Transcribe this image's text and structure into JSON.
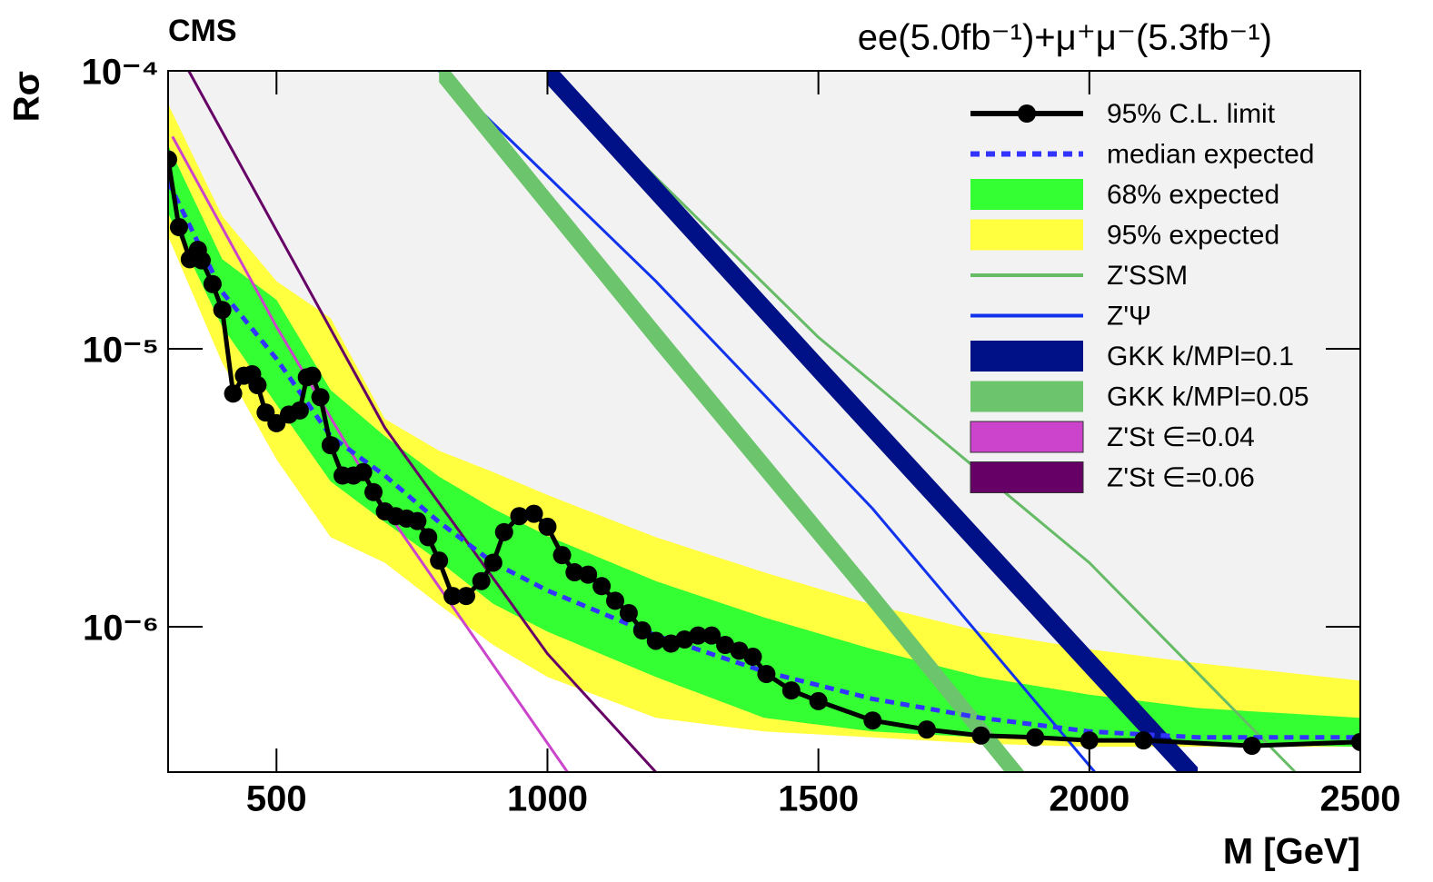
{
  "chart_data": {
    "type": "line",
    "title": "CMS",
    "subtitle": "ee(5.0fb⁻¹)+μ⁺μ⁻(5.3fb⁻¹)",
    "xlabel": "M [GeV]",
    "ylabel": "Rσ",
    "xlim": [
      300,
      2500
    ],
    "xticks": [
      500,
      1000,
      1500,
      2000,
      2500
    ],
    "ylim": [
      3e-07,
      0.0001
    ],
    "ylog": true,
    "yticks": [
      {
        "value": 1e-06,
        "label": "10⁻⁶"
      },
      {
        "value": 1e-05,
        "label": "10⁻⁵"
      },
      {
        "value": 0.0001,
        "label": "10⁻⁴"
      }
    ],
    "legend": "upper right",
    "series": [
      {
        "name": "95% C.L. limit",
        "color": "#000000",
        "style": "points",
        "x": [
          300,
          320,
          340,
          355,
          362,
          382,
          400,
          420,
          440,
          455,
          465,
          480,
          500,
          523,
          543,
          556,
          566,
          581,
          600,
          622,
          642,
          660,
          679,
          700,
          720,
          740,
          760,
          780,
          800,
          825,
          850,
          878,
          900,
          920,
          948,
          975,
          1000,
          1027,
          1050,
          1075,
          1100,
          1125,
          1150,
          1175,
          1200,
          1228,
          1253,
          1278,
          1303,
          1328,
          1354,
          1379,
          1404,
          1450,
          1500,
          1600,
          1700,
          1800,
          1900,
          2000,
          2100,
          2300,
          2500
        ],
        "values": [
          4.8e-05,
          2.74e-05,
          2.1e-05,
          2.27e-05,
          2.08e-05,
          1.71e-05,
          1.38e-05,
          6.9e-06,
          8e-06,
          8.1e-06,
          7.4e-06,
          5.9e-06,
          5.4e-06,
          5.8e-06,
          6e-06,
          7.9e-06,
          8e-06,
          6.7e-06,
          4.5e-06,
          3.5e-06,
          3.5e-06,
          3.6e-06,
          3.05e-06,
          2.6e-06,
          2.5e-06,
          2.45e-06,
          2.4e-06,
          2.1e-06,
          1.73e-06,
          1.29e-06,
          1.29e-06,
          1.46e-06,
          1.7e-06,
          2.19e-06,
          2.5e-06,
          2.55e-06,
          2.29e-06,
          1.81e-06,
          1.57e-06,
          1.54e-06,
          1.4e-06,
          1.24e-06,
          1.12e-06,
          9.7e-07,
          8.9e-07,
          8.7e-07,
          9e-07,
          9.3e-07,
          9.3e-07,
          8.6e-07,
          8.2e-07,
          7.8e-07,
          6.76e-07,
          5.9e-07,
          5.4e-07,
          4.6e-07,
          4.27e-07,
          4.06e-07,
          4e-07,
          3.9e-07,
          3.9e-07,
          3.73e-07,
          3.85e-07
        ]
      },
      {
        "name": "median expected",
        "color": "#3333ff",
        "style": "dashed",
        "x": [
          300,
          400,
          500,
          600,
          700,
          800,
          900,
          1000,
          1200,
          1400,
          1600,
          1800,
          2000,
          2200,
          2500
        ],
        "values": [
          4e-05,
          1.6e-05,
          9.2e-06,
          4.85e-06,
          3.5e-06,
          2.38e-06,
          1.7e-06,
          1.35e-06,
          9.3e-07,
          6.9e-07,
          5.5e-07,
          4.7e-07,
          4.2e-07,
          4e-07,
          4e-07
        ]
      },
      {
        "name": "68% expected",
        "color": "#33ff33",
        "style": "band",
        "x": [
          300,
          400,
          500,
          600,
          700,
          800,
          900,
          1000,
          1200,
          1400,
          1600,
          1800,
          2000,
          2200,
          2500
        ],
        "upper": [
          5.4e-05,
          2.1e-05,
          1.5e-05,
          7.1e-06,
          4.85e-06,
          3.47e-06,
          2.66e-06,
          2.12e-06,
          1.46e-06,
          1.08e-06,
          8.3e-07,
          6.6e-07,
          5.7e-07,
          5.1e-07,
          4.7e-07
        ],
        "lower": [
          3.07e-05,
          1.2e-05,
          6.3e-06,
          3.33e-06,
          2.38e-06,
          1.72e-06,
          1.21e-06,
          9.6e-07,
          6.6e-07,
          4.7e-07,
          4.2e-07,
          4e-07,
          3.9e-07,
          3.8e-07,
          3.7e-07
        ]
      },
      {
        "name": "95% expected",
        "color": "#ffff40",
        "style": "band",
        "x": [
          300,
          400,
          500,
          600,
          700,
          800,
          900,
          1000,
          1200,
          1400,
          1600,
          1800,
          2000,
          2200,
          2500
        ],
        "upper": [
          7.6e-05,
          3e-05,
          1.75e-05,
          1.29e-05,
          5.6e-06,
          4.3e-06,
          3.6e-06,
          2.98e-06,
          2.1e-06,
          1.57e-06,
          1.2e-06,
          9.6e-07,
          8.3e-07,
          7.4e-07,
          6.4e-07
        ],
        "lower": [
          2.54e-05,
          8.9e-06,
          4e-06,
          2.1e-06,
          1.7e-06,
          1.2e-06,
          8.6e-07,
          6.6e-07,
          4.7e-07,
          4.2e-07,
          4e-07,
          3.8e-07,
          3.7e-07,
          3.7e-07,
          3.7e-07
        ]
      },
      {
        "name": "Z'SSM",
        "color": "#66bb66",
        "style": "line",
        "x": [
          1000,
          1500,
          2000,
          2380
        ],
        "values": [
          0.0001,
          1.1e-05,
          1.7e-06,
          3e-07
        ]
      },
      {
        "name": "Z'Ψ",
        "color": "#1133ee",
        "style": "line",
        "x": [
          800,
          1200,
          1600,
          2010
        ],
        "values": [
          0.0001,
          1.75e-05,
          2.66e-06,
          3e-07
        ]
      },
      {
        "name": "GKK k/MPl=0.1",
        "color": "#001188",
        "style": "band",
        "x": [
          1000,
          1500,
          2000,
          2200
        ],
        "upper": [
          0.000111,
          9.5e-06,
          8.3e-07,
          3.12e-07
        ],
        "lower": [
          8.9e-05,
          7.6e-06,
          6.6e-07,
          2.5e-07
        ]
      },
      {
        "name": "GKK k/MPl=0.05",
        "color": "#6cc46c",
        "style": "band",
        "x": [
          800,
          1200,
          1600,
          1900
        ],
        "upper": [
          0.000112,
          1.24e-05,
          1.41e-06,
          2.7e-07
        ],
        "lower": [
          9.1e-05,
          1e-05,
          1.15e-06,
          2.2e-07
        ]
      },
      {
        "name": "Z'St ∈=0.04",
        "color": "#cc44cc",
        "style": "line",
        "legend_mark": "box",
        "x": [
          308,
          500,
          700,
          1037
        ],
        "values": [
          5.8e-05,
          1.2e-05,
          2.66e-06,
          3e-07
        ]
      },
      {
        "name": "Z'St ∈=0.06",
        "color": "#660066",
        "style": "line",
        "legend_mark": "box",
        "x": [
          338,
          700,
          1000,
          1200
        ],
        "values": [
          0.0001,
          5.2e-06,
          8e-07,
          3e-07
        ]
      }
    ]
  }
}
